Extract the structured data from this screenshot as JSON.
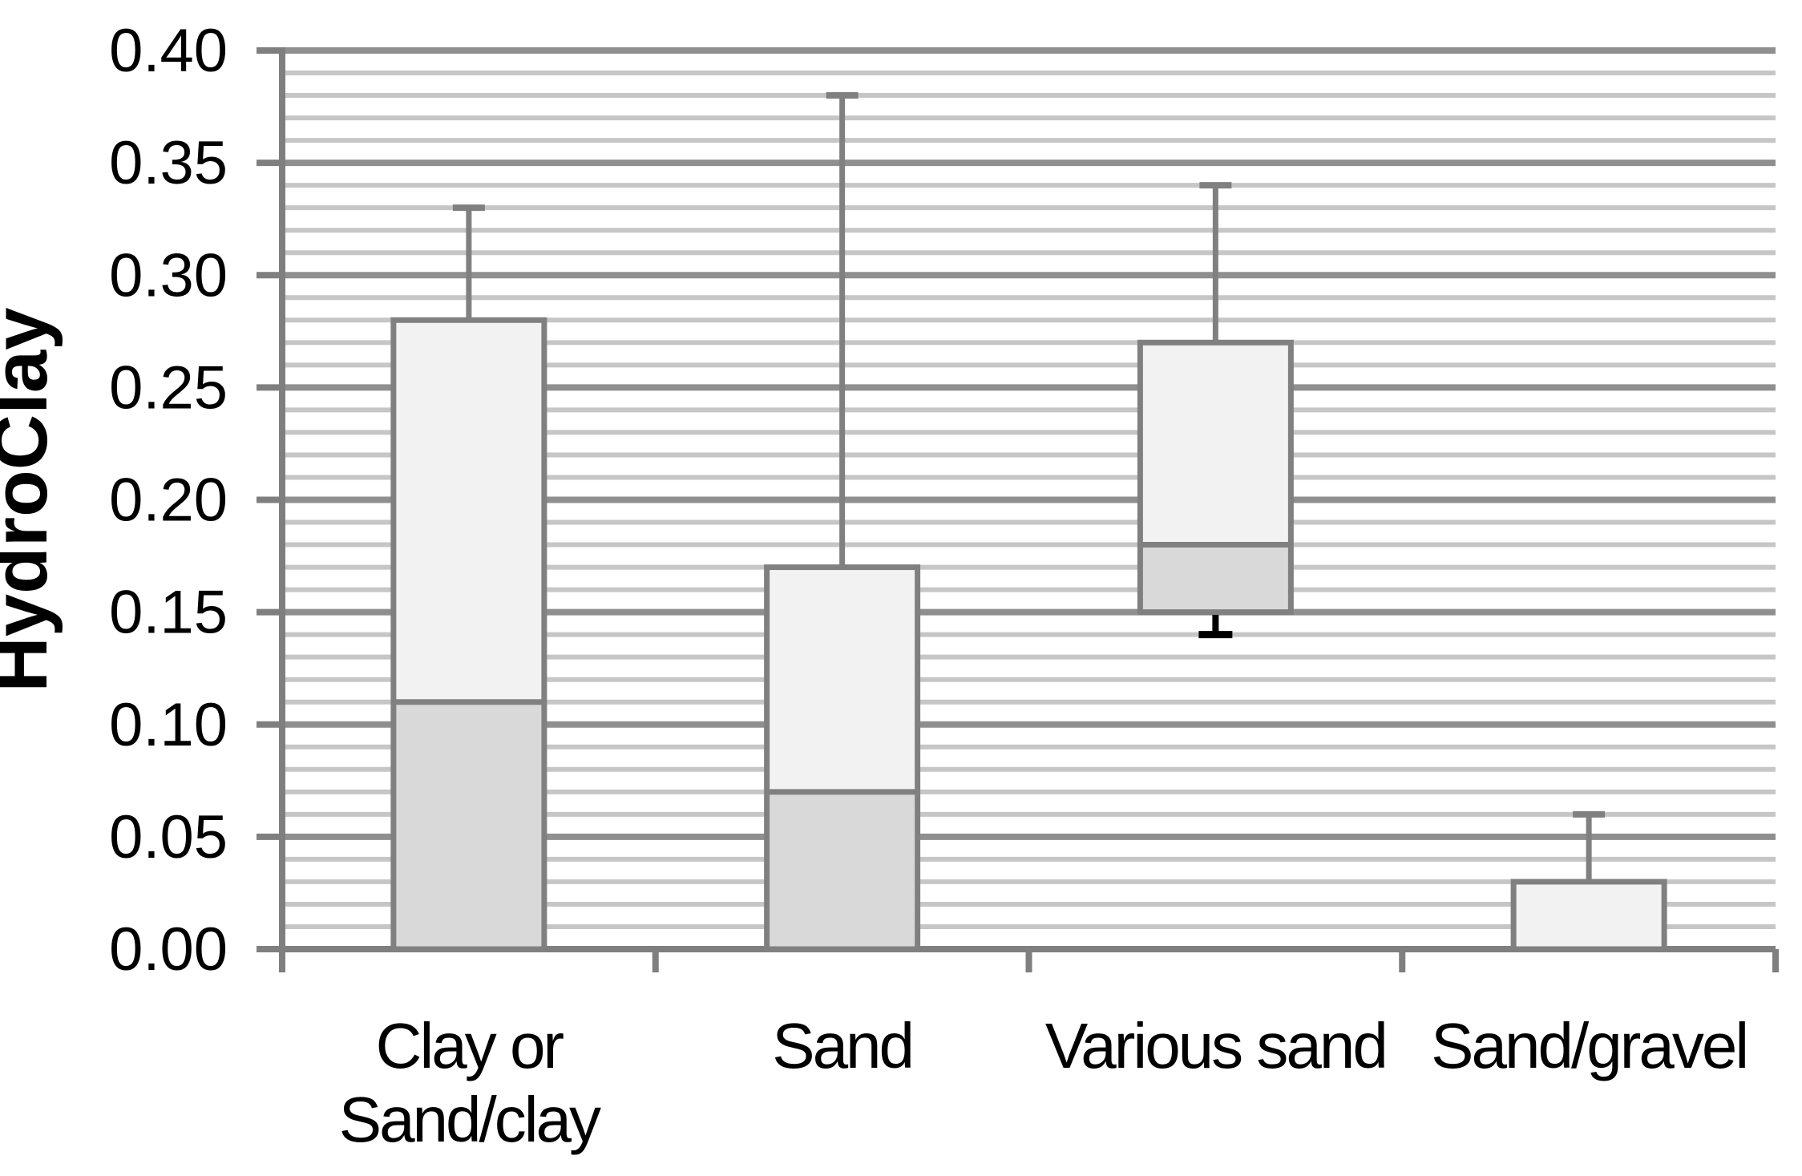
{
  "figure": {
    "background": "#ffffff"
  },
  "chart_data": {
    "type": "box",
    "title": "",
    "ylabel": "HydroClay",
    "xlabel": "",
    "ylim": [
      0.0,
      0.4
    ],
    "y_major_step": 0.05,
    "y_minor_step": 0.01,
    "grid": "horizontal, major dark + minor light, no vertical gridlines",
    "legend": "none",
    "y_tick_labels": [
      "0.00",
      "0.05",
      "0.10",
      "0.15",
      "0.20",
      "0.25",
      "0.30",
      "0.35",
      "0.40"
    ],
    "categories": [
      "Clay or Sand/clay",
      "Sand",
      "Various sand",
      "Sand/gravel"
    ],
    "x_tick_label_lines": [
      [
        "Clay or",
        "Sand/clay"
      ],
      [
        "Sand"
      ],
      [
        "Various sand"
      ],
      [
        "Sand/gravel"
      ]
    ],
    "series": [
      {
        "name": "Clay or Sand/clay",
        "box_bottom": 0.0,
        "median": 0.11,
        "box_top": 0.28,
        "whisker_high": 0.33,
        "whisker_low": null
      },
      {
        "name": "Sand",
        "box_bottom": 0.0,
        "median": 0.07,
        "box_top": 0.17,
        "whisker_high": 0.38,
        "whisker_low": null
      },
      {
        "name": "Various sand",
        "box_bottom": 0.15,
        "median": 0.18,
        "box_top": 0.27,
        "whisker_high": 0.34,
        "whisker_low": 0.14
      },
      {
        "name": "Sand/gravel",
        "box_bottom": 0.0,
        "median": null,
        "box_top": 0.03,
        "whisker_high": 0.06,
        "whisker_low": null
      }
    ],
    "colors": {
      "box_upper_fill": "#f2f2f2",
      "box_lower_fill": "#d9d9d9",
      "box_border": "#808080",
      "whisker": "#808080",
      "whisker_low": "#000000",
      "major_gridline": "#8f8f8f",
      "minor_gridline": "#c6c6c6",
      "axis": "#7f7f7f",
      "text": "#000000"
    }
  }
}
